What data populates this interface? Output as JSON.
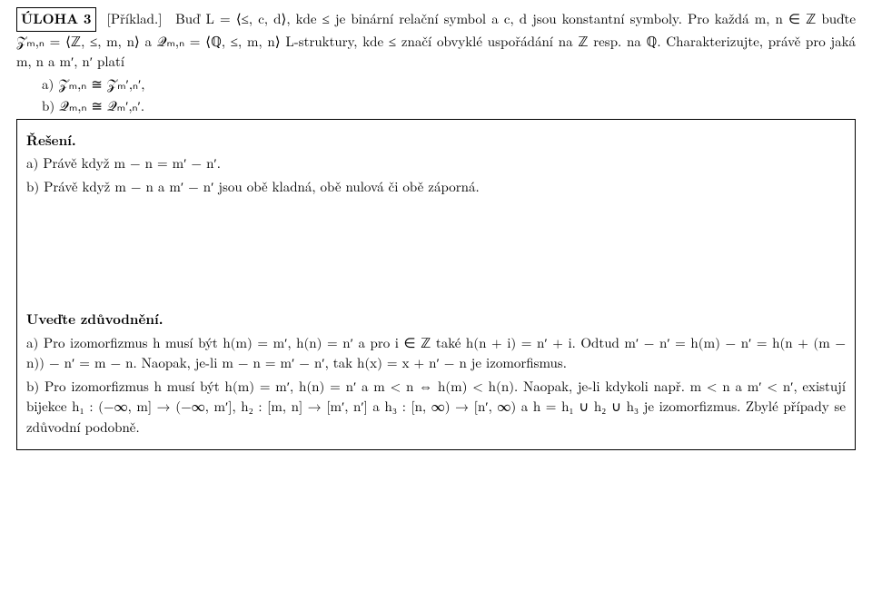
{
  "exercise": {
    "label": "ÚLOHA 3",
    "note": "[Příklad.]",
    "intro": "Buď L = ⟨≤, c, d⟩, kde ≤ je binární relační symbol a c, d jsou konstantní symboly. Pro každá m, n ∈ ℤ buďte 𝒵ₘ,ₙ = ⟨ℤ, ≤, m, n⟩ a 𝒬ₘ,ₙ = ⟨ℚ, ≤, m, n⟩ L-struktury, kde ≤ značí obvyklé uspořádání na ℤ resp. na ℚ. Charakterizujte, právě pro jaká m, n a m′, n′ platí",
    "item_a": "a) 𝒵ₘ,ₙ ≅ 𝒵ₘ′,ₙ′,",
    "item_b": "b) 𝒬ₘ,ₙ ≅ 𝒬ₘ′,ₙ′."
  },
  "solution": {
    "heading": "Řešení.",
    "item_a": "a) Právě když m − n = m′ − n′.",
    "item_b": "b) Právě když m − n a m′ − n′ jsou obě kladná, obě nulová či obě záporná."
  },
  "justification": {
    "heading": "Uveďte zdůvodnění.",
    "item_a": "a) Pro izomorfizmus h musí být h(m) = m′, h(n) = n′ a pro i ∈ ℤ také h(n + i) = n′ + i. Odtud m′ − n′ = h(m) − n′ = h(n + (m − n)) − n′ = m − n. Naopak, je-li m − n = m′ − n′, tak h(x) = x + n′ − n je izomorfismus.",
    "item_b": "b) Pro izomorfizmus h musí být h(m) = m′, h(n) = n′ a m < n ⇔ h(m) < h(n). Naopak, je-li kdykoli např. m < n a m′ < n′, existují bijekce h₁ : (−∞, m] → (−∞, m′], h₂ : [m, n] → [m′, n′] a h₃ : [n, ∞) → [n′, ∞) a h = h₁ ∪ h₂ ∪ h₃ je izomorfizmus. Zbylé případy se zdůvodní podobně."
  }
}
